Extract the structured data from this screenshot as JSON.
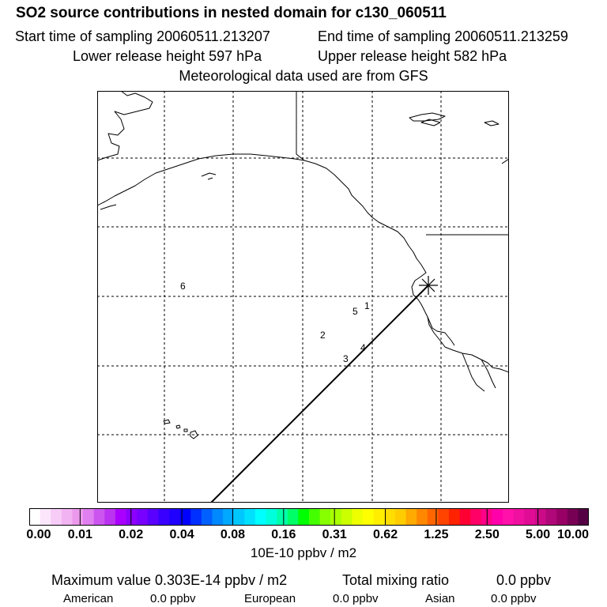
{
  "header": {
    "title": "SO2 source contributions in nested domain for c130_060511",
    "start_time": "Start time of sampling 20060511.213207",
    "end_time": "End time of sampling 20060511.213259",
    "lower_height": "Lower release height  597 hPa",
    "upper_height": "Upper release height  582 hPa",
    "met_data": "Meteorological data used are from GFS"
  },
  "map": {
    "day_markers": [
      {
        "label": "1"
      },
      {
        "label": "2"
      },
      {
        "label": "3"
      },
      {
        "label": "4"
      },
      {
        "label": "5"
      },
      {
        "label": "6"
      }
    ],
    "release_marker_icon": "asterisk-icon",
    "colors": {
      "coast": "#000000",
      "grid": "#000000",
      "trajectory": "#000000"
    }
  },
  "colorbar": {
    "tick_labels": [
      "0.00",
      "0.01",
      "0.02",
      "0.04",
      "0.08",
      "0.16",
      "0.31",
      "0.62",
      "1.25",
      "2.50",
      "5.00",
      "10.00"
    ],
    "colors": [
      "#ffffff",
      "#fbe6fb",
      "#f7ccf7",
      "#f2b3f2",
      "#ec99ec",
      "#e07ff0",
      "#cc55f0",
      "#bb33f0",
      "#aa00ff",
      "#8c00ff",
      "#7800ff",
      "#5a00ff",
      "#3a00ff",
      "#2000ff",
      "#0000ff",
      "#0030ff",
      "#0060ff",
      "#0088ff",
      "#00a8ff",
      "#00c8ff",
      "#00e0ff",
      "#00ffff",
      "#00ffdd",
      "#00ffaa",
      "#00ff66",
      "#00ff00",
      "#44ff00",
      "#88ff00",
      "#aaff00",
      "#ccff00",
      "#eeff00",
      "#ffff00",
      "#ffee00",
      "#ffdd00",
      "#ffcc00",
      "#ffaa00",
      "#ff8800",
      "#ff6600",
      "#ff4400",
      "#ff2200",
      "#ff0033",
      "#ff0066",
      "#ff0088",
      "#ff00aa",
      "#ff11aa",
      "#f010a0",
      "#e00c96",
      "#cc0a88",
      "#b00878",
      "#990066",
      "#770055",
      "#550044"
    ],
    "units": "10E-10 ppbv / m2"
  },
  "footer": {
    "max_value": "Maximum value  0.303E-14 ppbv / m2",
    "total_mixing_label": "Total mixing ratio",
    "total_mixing_value": "0.0 ppbv",
    "american_label": "American",
    "american_value": "0.0 ppbv",
    "european_label": "European",
    "european_value": "0.0 ppbv",
    "asian_label": "Asian",
    "asian_value": "0.0 ppbv"
  }
}
